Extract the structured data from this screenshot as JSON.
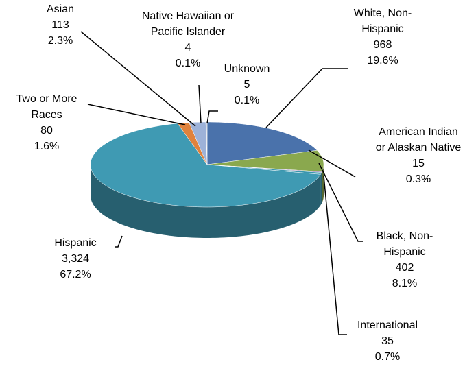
{
  "chart_data": {
    "type": "pie",
    "categories": [
      "White, Non-Hispanic",
      "Black, Non-Hispanic",
      "American Indian or Alaskan Native",
      "International",
      "Hispanic",
      "Two or More Races",
      "Asian",
      "Native Hawaiian or Pacific Islander",
      "Unknown"
    ],
    "values": [
      968,
      402,
      15,
      35,
      3324,
      80,
      113,
      4,
      5
    ],
    "value_labels": [
      "968",
      "402",
      "15",
      "35",
      "3,324",
      "80",
      "113",
      "4",
      "5"
    ],
    "percents": [
      19.6,
      8.1,
      0.3,
      0.7,
      67.2,
      1.6,
      2.3,
      0.1,
      0.1
    ],
    "percent_labels": [
      "19.6%",
      "8.1%",
      "0.3%",
      "0.7%",
      "67.2%",
      "1.6%",
      "2.3%",
      "0.1%",
      "0.1%"
    ],
    "colors": [
      "#4a72ab",
      "#8aa84e",
      "#7a5c9c",
      "#3a96ad",
      "#3f9ab3",
      "#e0823c",
      "#9db2d8",
      "#4d4d6a",
      "#a8b4c8"
    ]
  }
}
